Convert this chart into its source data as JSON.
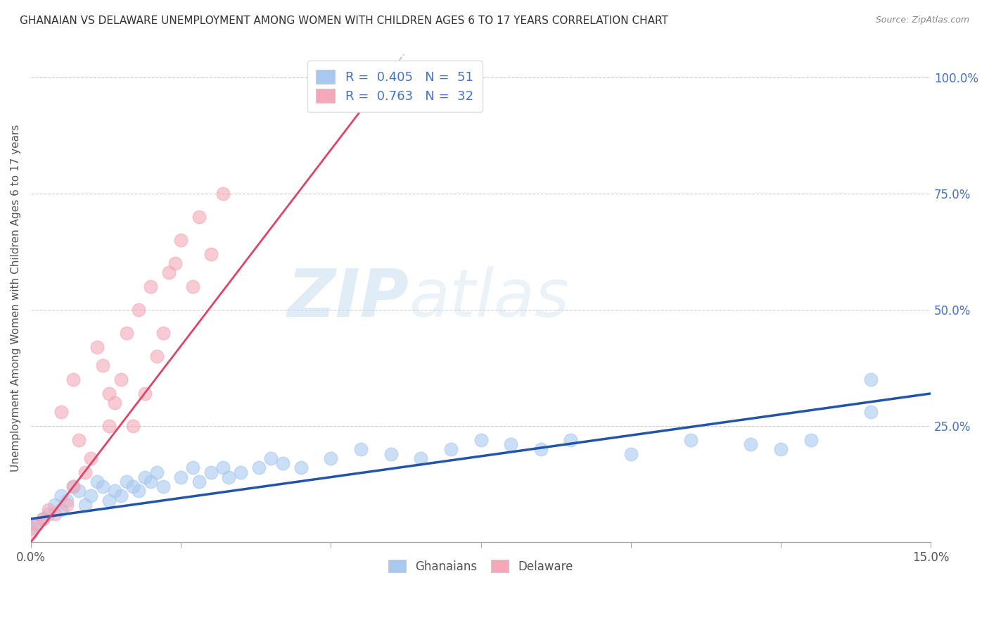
{
  "title": "GHANAIAN VS DELAWARE UNEMPLOYMENT AMONG WOMEN WITH CHILDREN AGES 6 TO 17 YEARS CORRELATION CHART",
  "source": "Source: ZipAtlas.com",
  "ylabel": "Unemployment Among Women with Children Ages 6 to 17 years",
  "xlim": [
    0.0,
    0.15
  ],
  "ylim": [
    0.0,
    1.05
  ],
  "r_blue": 0.405,
  "n_blue": 51,
  "r_pink": 0.763,
  "n_pink": 32,
  "blue_scatter_color": "#a8c8f0",
  "pink_scatter_color": "#f4a8b8",
  "blue_line_color": "#2255aa",
  "pink_line_color": "#dd4466",
  "grid_color": "#cccccc",
  "label_color_blue": "#4472c4",
  "watermark_zip_color": "#d0e4f5",
  "watermark_atlas_color": "#c5dff5",
  "ghanaian_x": [
    0.0,
    0.001,
    0.002,
    0.003,
    0.004,
    0.005,
    0.005,
    0.006,
    0.007,
    0.008,
    0.009,
    0.01,
    0.011,
    0.012,
    0.013,
    0.014,
    0.015,
    0.016,
    0.017,
    0.018,
    0.019,
    0.02,
    0.021,
    0.022,
    0.025,
    0.027,
    0.028,
    0.03,
    0.032,
    0.033,
    0.035,
    0.038,
    0.04,
    0.042,
    0.045,
    0.05,
    0.055,
    0.06,
    0.065,
    0.07,
    0.075,
    0.08,
    0.085,
    0.09,
    0.1,
    0.11,
    0.12,
    0.125,
    0.13,
    0.14,
    0.14
  ],
  "ghanaian_y": [
    0.03,
    0.04,
    0.05,
    0.06,
    0.08,
    0.07,
    0.1,
    0.09,
    0.12,
    0.11,
    0.08,
    0.1,
    0.13,
    0.12,
    0.09,
    0.11,
    0.1,
    0.13,
    0.12,
    0.11,
    0.14,
    0.13,
    0.15,
    0.12,
    0.14,
    0.16,
    0.13,
    0.15,
    0.16,
    0.14,
    0.15,
    0.16,
    0.18,
    0.17,
    0.16,
    0.18,
    0.2,
    0.19,
    0.18,
    0.2,
    0.22,
    0.21,
    0.2,
    0.22,
    0.19,
    0.22,
    0.21,
    0.2,
    0.22,
    0.35,
    0.28
  ],
  "delaware_x": [
    0.0,
    0.001,
    0.002,
    0.003,
    0.004,
    0.005,
    0.006,
    0.007,
    0.007,
    0.008,
    0.009,
    0.01,
    0.011,
    0.012,
    0.013,
    0.013,
    0.014,
    0.015,
    0.016,
    0.017,
    0.018,
    0.019,
    0.02,
    0.021,
    0.022,
    0.023,
    0.024,
    0.025,
    0.027,
    0.028,
    0.03,
    0.032
  ],
  "delaware_y": [
    0.02,
    0.04,
    0.05,
    0.07,
    0.06,
    0.28,
    0.08,
    0.35,
    0.12,
    0.22,
    0.15,
    0.18,
    0.42,
    0.38,
    0.25,
    0.32,
    0.3,
    0.35,
    0.45,
    0.25,
    0.5,
    0.32,
    0.55,
    0.4,
    0.45,
    0.58,
    0.6,
    0.65,
    0.55,
    0.7,
    0.62,
    0.75
  ]
}
